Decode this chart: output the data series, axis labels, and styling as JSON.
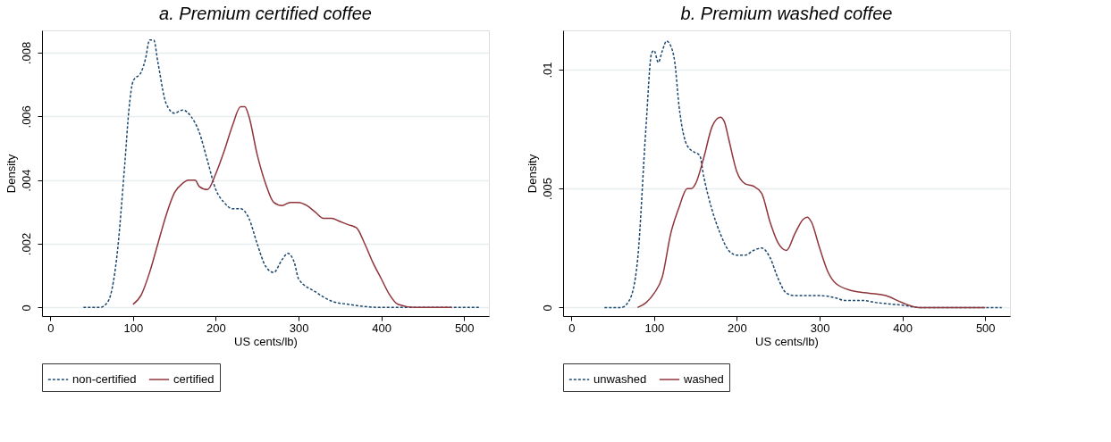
{
  "chart_data": [
    {
      "type": "line",
      "title": "a.    Premium certified coffee",
      "xlabel": "US cents/lb)",
      "ylabel": "Density",
      "xlim": [
        -10,
        530
      ],
      "xticks": [
        0,
        100,
        200,
        300,
        400,
        500
      ],
      "ylim": [
        -0.00027,
        0.0087
      ],
      "yticks": [
        {
          "value": 0,
          "label": "0"
        },
        {
          "value": 0.002,
          "label": ".002"
        },
        {
          "value": 0.004,
          "label": ".004"
        },
        {
          "value": 0.006,
          "label": ".006"
        },
        {
          "value": 0.008,
          "label": ".008"
        }
      ],
      "grid": "y",
      "legend": "bottom",
      "series": [
        {
          "name": "non-certified",
          "color": "#1a476f",
          "line_style": "dashed",
          "x": [
            40,
            60,
            70,
            80,
            90,
            95,
            100,
            110,
            115,
            120,
            125,
            130,
            140,
            150,
            160,
            170,
            180,
            190,
            200,
            210,
            220,
            230,
            240,
            250,
            260,
            270,
            280,
            287,
            295,
            300,
            320,
            340,
            360,
            400,
            450,
            520
          ],
          "values": [
            0,
            0,
            0.0002,
            0.0015,
            0.0045,
            0.0062,
            0.0071,
            0.0074,
            0.0078,
            0.0084,
            0.0084,
            0.0077,
            0.0064,
            0.0061,
            0.0062,
            0.006,
            0.0055,
            0.0046,
            0.0037,
            0.0033,
            0.0031,
            0.0031,
            0.0028,
            0.002,
            0.0013,
            0.0011,
            0.0015,
            0.0017,
            0.0014,
            0.0009,
            0.0005,
            0.0002,
            0.0001,
            0,
            0,
            0
          ]
        },
        {
          "name": "certified",
          "color": "#90353b",
          "line_style": "solid",
          "x": [
            100,
            110,
            120,
            130,
            140,
            150,
            160,
            167,
            175,
            180,
            190,
            200,
            210,
            220,
            230,
            235,
            240,
            250,
            260,
            270,
            280,
            290,
            300,
            310,
            320,
            330,
            340,
            350,
            360,
            370,
            380,
            390,
            400,
            410,
            420,
            440,
            485
          ],
          "values": [
            0.0001,
            0.0004,
            0.0011,
            0.002,
            0.0029,
            0.0036,
            0.0039,
            0.004,
            0.004,
            0.0038,
            0.0037,
            0.0042,
            0.0049,
            0.0057,
            0.0063,
            0.0063,
            0.006,
            0.0048,
            0.0039,
            0.0033,
            0.0032,
            0.0033,
            0.0033,
            0.0032,
            0.003,
            0.0028,
            0.0028,
            0.0027,
            0.0026,
            0.0025,
            0.002,
            0.0014,
            0.0009,
            0.0004,
            0.0001,
            0,
            0
          ]
        }
      ]
    },
    {
      "type": "line",
      "title": "b.    Premium washed coffee",
      "xlabel": "US cents/lb)",
      "ylabel": "Density",
      "xlim": [
        -10,
        530
      ],
      "xticks": [
        0,
        100,
        200,
        300,
        400,
        500
      ],
      "ylim": [
        -0.00036,
        0.01165
      ],
      "yticks": [
        {
          "value": 0,
          "label": "0"
        },
        {
          "value": 0.005,
          "label": ".005"
        },
        {
          "value": 0.01,
          "label": ".01"
        }
      ],
      "grid": "y",
      "legend": "bottom",
      "series": [
        {
          "name": "unwashed",
          "color": "#1a476f",
          "line_style": "dashed",
          "x": [
            40,
            60,
            70,
            80,
            90,
            97,
            100,
            105,
            110,
            115,
            120,
            125,
            130,
            140,
            150,
            155,
            160,
            170,
            180,
            190,
            200,
            210,
            220,
            230,
            240,
            250,
            260,
            270,
            300,
            320,
            330,
            350,
            370,
            400,
            420,
            520
          ],
          "values": [
            0,
            0,
            0.0003,
            0.002,
            0.0075,
            0.0107,
            0.0108,
            0.0103,
            0.0108,
            0.0112,
            0.011,
            0.0103,
            0.0085,
            0.0068,
            0.0065,
            0.0064,
            0.0055,
            0.0041,
            0.0031,
            0.0024,
            0.0022,
            0.0022,
            0.0024,
            0.0025,
            0.0021,
            0.0012,
            0.0006,
            0.0005,
            0.0005,
            0.0004,
            0.0003,
            0.0003,
            0.0002,
            0.0001,
            0,
            0
          ]
        },
        {
          "name": "washed",
          "color": "#90353b",
          "line_style": "solid",
          "x": [
            80,
            90,
            100,
            110,
            120,
            130,
            140,
            145,
            150,
            160,
            170,
            180,
            185,
            190,
            200,
            210,
            220,
            230,
            240,
            250,
            260,
            270,
            280,
            285,
            290,
            300,
            310,
            320,
            340,
            360,
            380,
            400,
            420,
            500
          ],
          "values": [
            0,
            0.0002,
            0.0006,
            0.0013,
            0.0031,
            0.0042,
            0.005,
            0.005,
            0.0052,
            0.0063,
            0.0076,
            0.008,
            0.0078,
            0.0071,
            0.0057,
            0.0052,
            0.0051,
            0.0048,
            0.0036,
            0.0027,
            0.0024,
            0.0031,
            0.0037,
            0.0038,
            0.0036,
            0.0025,
            0.0015,
            0.001,
            0.0007,
            0.0006,
            0.0005,
            0.0002,
            0,
            0
          ]
        }
      ]
    }
  ]
}
